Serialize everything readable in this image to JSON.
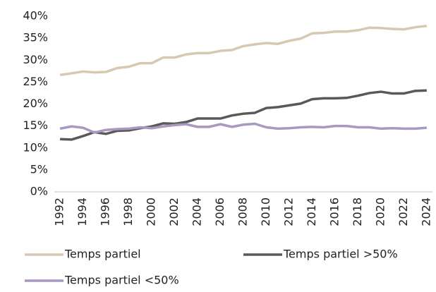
{
  "chart_data": {
    "type": "line",
    "categories": [
      "1992",
      null,
      "1994",
      null,
      "1996",
      null,
      "1998",
      null,
      "2000",
      null,
      "2002",
      null,
      "2004",
      null,
      "2006",
      null,
      "2008",
      null,
      "2010",
      null,
      "2012",
      null,
      "2014",
      null,
      "2016",
      null,
      "2018",
      null,
      "2020",
      null,
      "2022",
      null,
      "2024"
    ],
    "ylim": [
      0,
      40
    ],
    "yticks": [
      {
        "value": 0,
        "label": "0%"
      },
      {
        "value": 5,
        "label": "5%"
      },
      {
        "value": 10,
        "label": "10%"
      },
      {
        "value": 15,
        "label": "15%"
      },
      {
        "value": 20,
        "label": "20%"
      },
      {
        "value": 25,
        "label": "25%"
      },
      {
        "value": 30,
        "label": "30%"
      },
      {
        "value": 35,
        "label": "35%"
      },
      {
        "value": 40,
        "label": "40%"
      }
    ],
    "grid": false,
    "legend": "bottom",
    "series": [
      {
        "name": "Temps partiel",
        "color": "#d8c8b3",
        "values": [
          26.6,
          27.0,
          27.4,
          27.2,
          27.3,
          28.2,
          28.5,
          29.3,
          29.3,
          30.6,
          30.6,
          31.3,
          31.6,
          31.6,
          32.1,
          32.3,
          33.2,
          33.6,
          33.9,
          33.7,
          34.4,
          34.9,
          36.1,
          36.2,
          36.5,
          36.5,
          36.8,
          37.4,
          37.3,
          37.1,
          37.0,
          37.5,
          37.8
        ]
      },
      {
        "name": "Temps partiel >50%",
        "color": "#595959",
        "values": [
          12.0,
          11.9,
          12.7,
          13.6,
          13.2,
          13.9,
          14.0,
          14.5,
          14.9,
          15.6,
          15.5,
          15.9,
          16.7,
          16.7,
          16.7,
          17.4,
          17.8,
          18.0,
          19.1,
          19.3,
          19.7,
          20.1,
          21.1,
          21.3,
          21.3,
          21.4,
          21.9,
          22.5,
          22.8,
          22.4,
          22.4,
          23.0,
          23.1
        ]
      },
      {
        "name": "Temps partiel <50%",
        "color": "#a898c2",
        "values": [
          14.4,
          14.9,
          14.6,
          13.5,
          14.1,
          14.3,
          14.4,
          14.7,
          14.5,
          14.9,
          15.2,
          15.4,
          14.8,
          14.8,
          15.4,
          14.8,
          15.3,
          15.5,
          14.7,
          14.4,
          14.5,
          14.7,
          14.8,
          14.7,
          15.0,
          15.0,
          14.7,
          14.7,
          14.4,
          14.5,
          14.4,
          14.4,
          14.6
        ]
      }
    ]
  }
}
